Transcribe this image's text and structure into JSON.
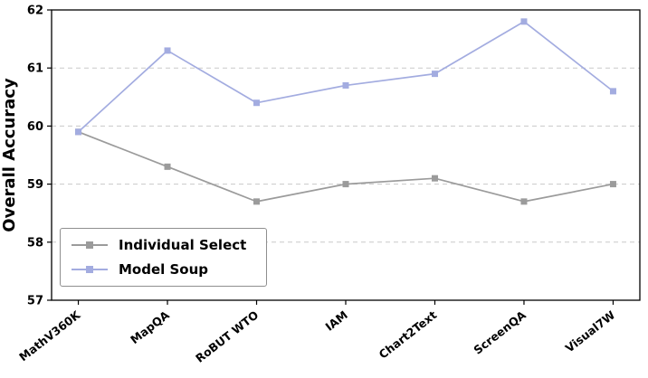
{
  "chart_data": {
    "type": "line",
    "categories": [
      "MathV360K",
      "MapQA",
      "RoBUT WTO",
      "IAM",
      "Chart2Text",
      "ScreenQA",
      "Visual7W"
    ],
    "series": [
      {
        "name": "Individual Select",
        "color": "#9b9b9b",
        "values": [
          59.9,
          59.3,
          58.7,
          59.0,
          59.1,
          58.7,
          59.0
        ]
      },
      {
        "name": "Model Soup",
        "color": "#a3ace0",
        "values": [
          59.9,
          61.3,
          60.4,
          60.7,
          60.9,
          61.8,
          60.6
        ]
      }
    ],
    "title": "",
    "xlabel": "",
    "ylabel": "Overall Accuracy",
    "ylim": [
      57,
      62
    ],
    "yticks": [
      57,
      58,
      59,
      60,
      61,
      62
    ],
    "grid": "horizontal-dashed",
    "legend_position": "lower left",
    "marker": "square"
  }
}
